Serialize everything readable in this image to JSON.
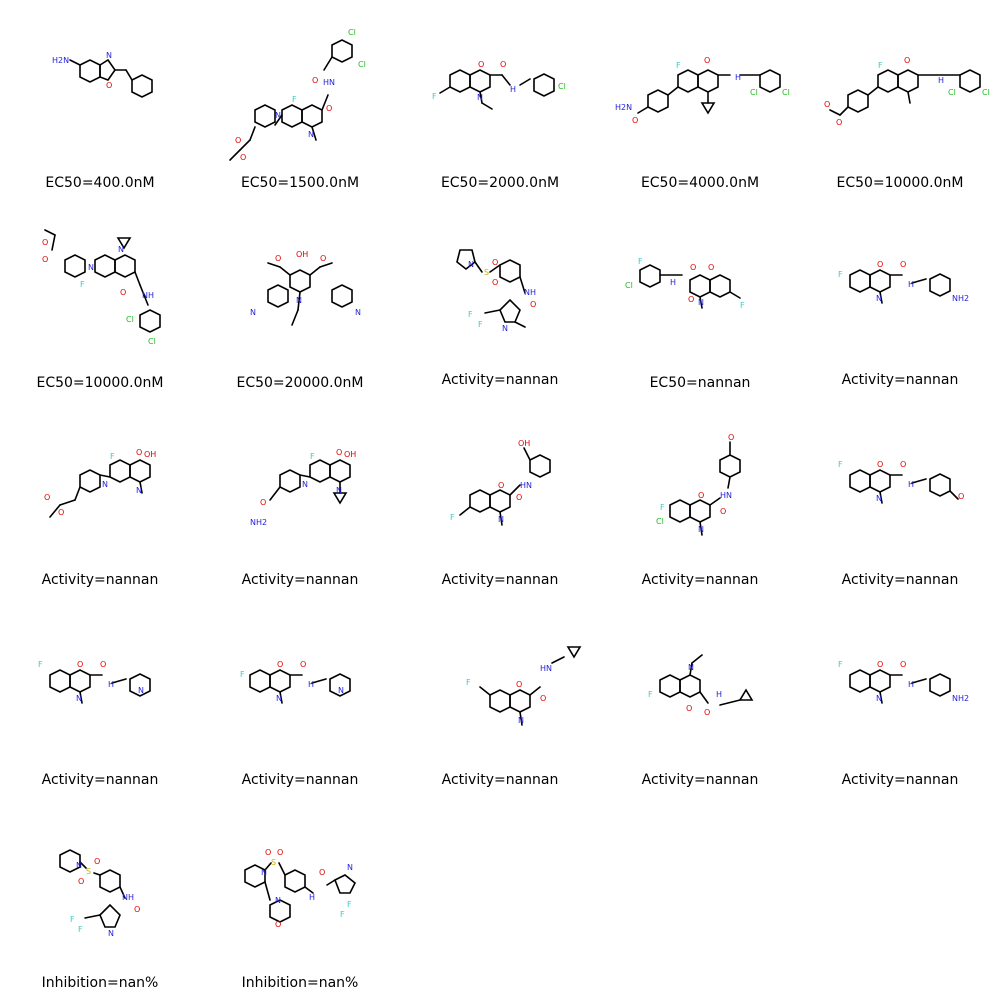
{
  "grid": {
    "cells": [
      {
        "caption": "EC50=400.0nM"
      },
      {
        "caption": "EC50=1500.0nM"
      },
      {
        "caption": "EC50=2000.0nM"
      },
      {
        "caption": "EC50=4000.0nM"
      },
      {
        "caption": "EC50=10000.0nM"
      },
      {
        "caption": "EC50=10000.0nM"
      },
      {
        "caption": "EC50=20000.0nM"
      },
      {
        "caption": "Activity=nannan"
      },
      {
        "caption": "EC50=nannan"
      },
      {
        "caption": "Activity=nannan"
      },
      {
        "caption": "Activity=nannan"
      },
      {
        "caption": "Activity=nannan"
      },
      {
        "caption": "Activity=nannan"
      },
      {
        "caption": "Activity=nannan"
      },
      {
        "caption": "Activity=nannan"
      },
      {
        "caption": "Activity=nannan"
      },
      {
        "caption": "Activity=nannan"
      },
      {
        "caption": "Activity=nannan"
      },
      {
        "caption": "Activity=nannan"
      },
      {
        "caption": "Activity=nannan"
      },
      {
        "caption": "Inhibition=nan%"
      },
      {
        "caption": "Inhibition=nan%"
      }
    ]
  },
  "atom_labels": {
    "nh2": "NH2",
    "h2n": "H2N",
    "n": "N",
    "o": "O",
    "f": "F",
    "cl": "Cl",
    "hn": "HN",
    "nh": "NH",
    "h": "H",
    "s": "S",
    "oh": "OH"
  },
  "colors": {
    "nitrogen": "#2222dd",
    "oxygen": "#e00000",
    "fluorine": "#33cccc",
    "chlorine": "#22bb22",
    "sulfur": "#c8b400",
    "bond": "#000000"
  }
}
